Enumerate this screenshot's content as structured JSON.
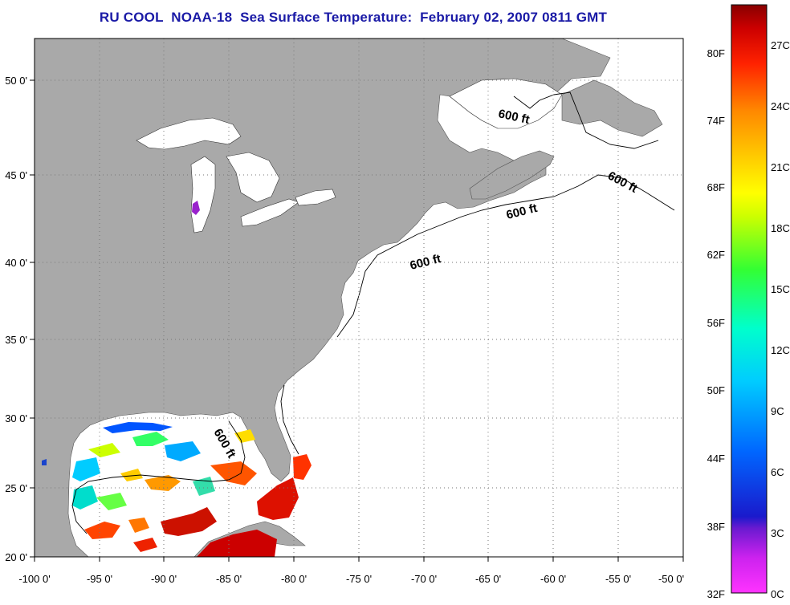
{
  "title": "RU COOL  NOAA-18  Sea Surface Temperature:  February 02, 2007 0811 GMT",
  "map": {
    "lon_range": [
      -100,
      -50
    ],
    "lat_range": [
      20,
      52.5
    ],
    "lon_ticks": [
      -100,
      -95,
      -90,
      -85,
      -80,
      -75,
      -70,
      -65,
      -60,
      -55,
      -50
    ],
    "lat_ticks": [
      20,
      25,
      30,
      35,
      40,
      45,
      50
    ],
    "lon_tick_labels": [
      "-100 0'",
      "-95 0'",
      "-90 0'",
      "-85 0'",
      "-80 0'",
      "-75 0'",
      "-70 0'",
      "-65 0'",
      "-60 0'",
      "-55 0'",
      "-50 0'"
    ],
    "lat_tick_labels": [
      "20 0'",
      "25 0'",
      "30 0'",
      "35 0'",
      "40 0'",
      "45 0'",
      "50 0'"
    ],
    "grid": "dotted",
    "land_color": "#a9a9a9",
    "ocean_color": "#ffffff",
    "isobath_label": "600 ft",
    "isobath_labels": [
      "600 ft",
      "600 ft",
      "600 ft",
      "600 ft",
      "600 ft"
    ]
  },
  "colorbar": {
    "fahrenheit_labels": [
      "80F",
      "74F",
      "68F",
      "62F",
      "56F",
      "50F",
      "44F",
      "38F",
      "32F"
    ],
    "celsius_labels": [
      "27C",
      "24C",
      "21C",
      "18C",
      "15C",
      "12C",
      "9C",
      "6C",
      "3C",
      "0C"
    ],
    "colors": [
      "#ff33ff",
      "#9900cc",
      "#1a1acc",
      "#0066ff",
      "#00ccff",
      "#00ffcc",
      "#33ff33",
      "#ccff00",
      "#ffff00",
      "#ffcc00",
      "#ff8800",
      "#ff2200",
      "#cc0000",
      "#880000"
    ]
  }
}
